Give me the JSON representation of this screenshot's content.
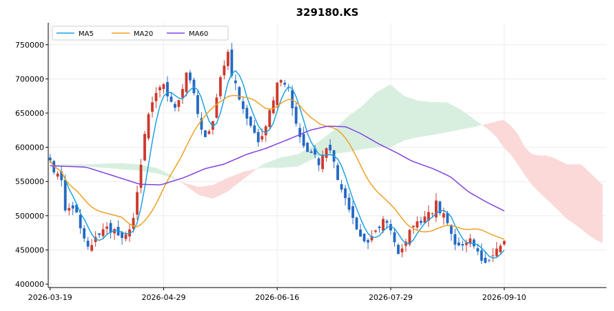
{
  "chart_data": {
    "type": "candlestick",
    "title": "329180.KS",
    "xlabel": "",
    "ylabel": "",
    "ylim": [
      395000,
      782000
    ],
    "y_ticks": [
      400000,
      450000,
      500000,
      550000,
      600000,
      650000,
      700000,
      750000
    ],
    "y_tick_labels": [
      "400000",
      "450000",
      "500000",
      "550000",
      "600000",
      "650000",
      "700000",
      "750000"
    ],
    "x_tick_labels": [
      {
        "index": 0,
        "label": "2026-03-19"
      },
      {
        "index": 30,
        "label": "2026-04-29"
      },
      {
        "index": 60,
        "label": "2026-06-16"
      },
      {
        "index": 90,
        "label": "2026-07-29"
      },
      {
        "index": 120,
        "label": "2026-09-10"
      }
    ],
    "n_sessions": 121,
    "x_range_index": [
      -0.5,
      147
    ],
    "grid": true,
    "legend_position": "upper-left",
    "colors": {
      "up": "#cd3a2e",
      "down": "#2569c3",
      "ma5": "#1ba1e2",
      "ma20": "#f0a020",
      "ma60": "#8040e0",
      "cloud_bull": "#d8efe0",
      "cloud_bear": "#fbd9d9"
    },
    "legend": [
      {
        "key": "ma5",
        "label": "MA5"
      },
      {
        "key": "ma20",
        "label": "MA20"
      },
      {
        "key": "ma60",
        "label": "MA60"
      }
    ],
    "close_anchors": [
      [
        0,
        578000
      ],
      [
        2,
        560000
      ],
      [
        3,
        570000
      ],
      [
        4,
        545000
      ],
      [
        5,
        505000
      ],
      [
        7,
        520000
      ],
      [
        9,
        500000
      ],
      [
        11,
        470000
      ],
      [
        13,
        455000
      ],
      [
        15,
        465000
      ],
      [
        17,
        478000
      ],
      [
        19,
        482000
      ],
      [
        21,
        478000
      ],
      [
        23,
        472000
      ],
      [
        25,
        470000
      ],
      [
        27,
        482000
      ],
      [
        28,
        498000
      ],
      [
        29,
        530000
      ],
      [
        30,
        560000
      ],
      [
        31,
        585000
      ],
      [
        32,
        635000
      ],
      [
        34,
        665000
      ],
      [
        36,
        680000
      ],
      [
        38,
        690000
      ],
      [
        40,
        670000
      ],
      [
        42,
        655000
      ],
      [
        44,
        680000
      ],
      [
        45,
        705000
      ],
      [
        46,
        710000
      ],
      [
        48,
        680000
      ],
      [
        50,
        640000
      ],
      [
        52,
        610000
      ],
      [
        54,
        630000
      ],
      [
        56,
        680000
      ],
      [
        58,
        720000
      ],
      [
        60,
        745000
      ],
      [
        61,
        700000
      ],
      [
        63,
        680000
      ],
      [
        64,
        660000
      ],
      [
        66,
        640000
      ],
      [
        68,
        620000
      ],
      [
        70,
        605000
      ],
      [
        72,
        630000
      ],
      [
        74,
        660000
      ],
      [
        76,
        690000
      ],
      [
        78,
        700000
      ],
      [
        80,
        685000
      ],
      [
        82,
        640000
      ],
      [
        84,
        610000
      ],
      [
        86,
        595000
      ],
      [
        88,
        590000
      ],
      [
        90,
        575000
      ],
      [
        92,
        600000
      ],
      [
        94,
        590000
      ],
      [
        96,
        560000
      ],
      [
        98,
        530000
      ],
      [
        100,
        510000
      ],
      [
        102,
        490000
      ],
      [
        104,
        470000
      ],
      [
        106,
        458000
      ],
      [
        108,
        470000
      ],
      [
        110,
        480000
      ],
      [
        112,
        505000
      ],
      [
        113,
        490000
      ],
      [
        115,
        470000
      ],
      [
        116,
        452000
      ],
      [
        117,
        440000
      ],
      [
        119,
        462000
      ],
      [
        121,
        482000
      ],
      [
        123,
        495000
      ],
      [
        124,
        485000
      ],
      [
        125,
        488000
      ],
      [
        126,
        510000
      ],
      [
        127,
        505000
      ],
      [
        128,
        500000
      ],
      [
        129,
        530000
      ],
      [
        130,
        508000
      ],
      [
        132,
        505000
      ],
      [
        134,
        478000
      ],
      [
        136,
        455000
      ],
      [
        138,
        460000
      ],
      [
        140,
        465000
      ],
      [
        142,
        458000
      ],
      [
        144,
        440000
      ],
      [
        146,
        430000
      ],
      [
        148,
        440000
      ],
      [
        150,
        455000
      ],
      [
        152,
        462000
      ]
    ],
    "ma60_anchors": [
      [
        0,
        573000
      ],
      [
        12,
        571000
      ],
      [
        20,
        560000
      ],
      [
        30,
        546000
      ],
      [
        37,
        545000
      ],
      [
        45,
        556000
      ],
      [
        52,
        569000
      ],
      [
        58,
        575000
      ],
      [
        66,
        590000
      ],
      [
        72,
        598000
      ],
      [
        80,
        612000
      ],
      [
        87,
        625000
      ],
      [
        93,
        631000
      ],
      [
        99,
        630000
      ],
      [
        104,
        620000
      ],
      [
        110,
        605000
      ],
      [
        116,
        592000
      ],
      [
        121,
        580000
      ],
      [
        128,
        569000
      ],
      [
        134,
        557000
      ],
      [
        140,
        535000
      ],
      [
        146,
        520000
      ],
      [
        152,
        507000
      ]
    ],
    "cloud": {
      "span_a_anchors": [
        [
          0,
          575000
        ],
        [
          10,
          575000
        ],
        [
          15,
          576000
        ],
        [
          20,
          577000
        ],
        [
          25,
          575000
        ],
        [
          30,
          570000
        ],
        [
          34,
          560000
        ],
        [
          38,
          545000
        ],
        [
          42,
          530000
        ],
        [
          46,
          525000
        ],
        [
          50,
          535000
        ],
        [
          55,
          555000
        ],
        [
          60,
          575000
        ],
        [
          65,
          585000
        ],
        [
          70,
          590000
        ],
        [
          75,
          605000
        ],
        [
          80,
          625000
        ],
        [
          84,
          645000
        ],
        [
          88,
          660000
        ],
        [
          92,
          680000
        ],
        [
          96,
          692000
        ],
        [
          100,
          675000
        ],
        [
          104,
          668000
        ],
        [
          108,
          666000
        ],
        [
          112,
          666000
        ],
        [
          116,
          655000
        ],
        [
          120,
          640000
        ],
        [
          124,
          625000
        ],
        [
          126,
          615000
        ],
        [
          128,
          600000
        ],
        [
          130,
          590000
        ],
        [
          132,
          575000
        ],
        [
          134,
          560000
        ],
        [
          136,
          545000
        ],
        [
          138,
          535000
        ],
        [
          140,
          525000
        ],
        [
          142,
          515000
        ],
        [
          144,
          505000
        ],
        [
          146,
          495000
        ],
        [
          148,
          488000
        ],
        [
          150,
          480000
        ],
        [
          152,
          472000
        ],
        [
          154,
          465000
        ],
        [
          156,
          460000
        ]
      ],
      "span_b_anchors": [
        [
          0,
          574000
        ],
        [
          10,
          572000
        ],
        [
          15,
          570000
        ],
        [
          20,
          568000
        ],
        [
          25,
          566000
        ],
        [
          30,
          562000
        ],
        [
          34,
          556000
        ],
        [
          38,
          548000
        ],
        [
          42,
          542000
        ],
        [
          46,
          545000
        ],
        [
          50,
          555000
        ],
        [
          55,
          565000
        ],
        [
          60,
          570000
        ],
        [
          65,
          570000
        ],
        [
          70,
          572000
        ],
        [
          75,
          585000
        ],
        [
          80,
          590000
        ],
        [
          84,
          593000
        ],
        [
          88,
          597000
        ],
        [
          92,
          600000
        ],
        [
          96,
          600000
        ],
        [
          100,
          610000
        ],
        [
          104,
          615000
        ],
        [
          108,
          618000
        ],
        [
          112,
          622000
        ],
        [
          116,
          626000
        ],
        [
          120,
          630000
        ],
        [
          124,
          635000
        ],
        [
          126,
          638000
        ],
        [
          128,
          640000
        ],
        [
          130,
          632000
        ],
        [
          132,
          620000
        ],
        [
          134,
          600000
        ],
        [
          136,
          590000
        ],
        [
          138,
          588000
        ],
        [
          140,
          588000
        ],
        [
          142,
          585000
        ],
        [
          144,
          580000
        ],
        [
          146,
          575000
        ],
        [
          148,
          575000
        ],
        [
          150,
          575000
        ],
        [
          152,
          565000
        ],
        [
          154,
          555000
        ],
        [
          156,
          545000
        ]
      ]
    }
  }
}
